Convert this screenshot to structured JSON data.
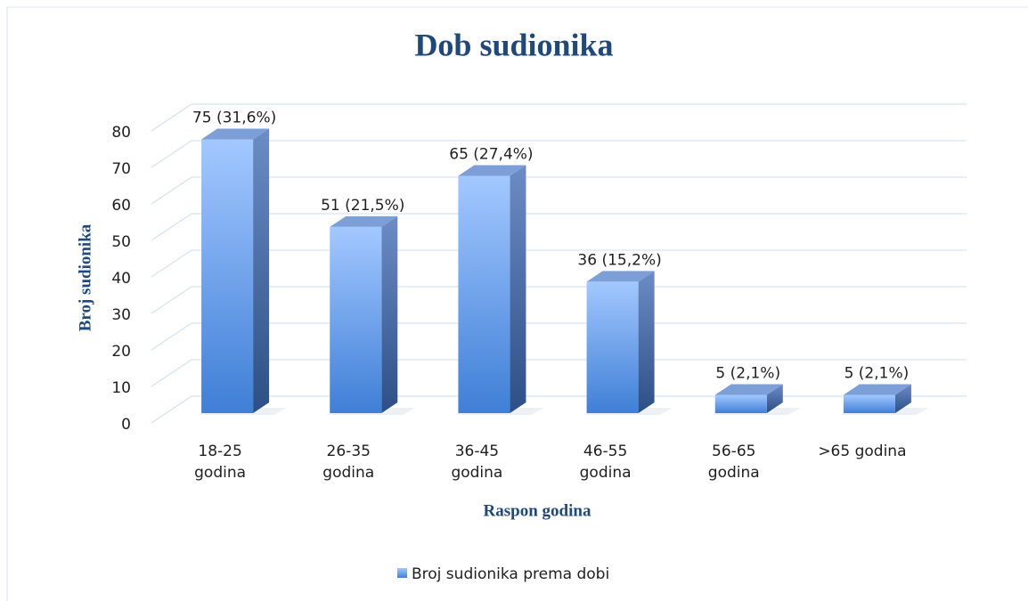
{
  "chart_data": {
    "type": "bar",
    "title": "Dob sudionika",
    "x_label": "Raspon godina",
    "y_label": "Broj sudionika",
    "categories": [
      "18-25\ngodina",
      "26-35\ngodina",
      "36-45\ngodina",
      "46-55\ngodina",
      "56-65\ngodina",
      ">65 godina"
    ],
    "series": [
      {
        "name": "Broj sudionika prema dobi",
        "color": "#3f7fd6",
        "values": [
          75,
          51,
          65,
          36,
          5,
          5
        ],
        "value_labels": [
          "75 (31,6%)",
          "51 (21,5%)",
          "65 (27,4%)",
          "36 (15,2%)",
          "5 (2,1%)",
          "5 (2,1%)"
        ]
      }
    ],
    "ylim": [
      0,
      80
    ],
    "yticks": [
      0,
      10,
      20,
      30,
      40,
      50,
      60,
      70,
      80
    ],
    "grid": true,
    "legend": "bottom"
  }
}
